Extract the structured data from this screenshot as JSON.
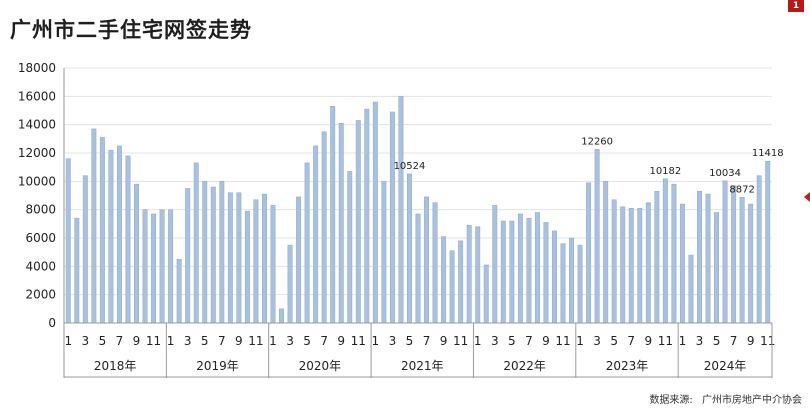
{
  "title": "广州市二手住宅网签走势",
  "badge": "1",
  "source": {
    "label": "数据来源:",
    "value": "广州市房地产中介协会"
  },
  "colors": {
    "bar": "#a9c1dc",
    "bar_edge": "#8eaacb",
    "grid": "#e3e3e3",
    "axis": "#9a9a9a"
  },
  "chart_data": {
    "type": "bar",
    "title": "广州市二手住宅网签走势",
    "xlabel": "",
    "ylabel": "",
    "ylim": [
      0,
      18000
    ],
    "yticks": [
      0,
      2000,
      4000,
      6000,
      8000,
      10000,
      12000,
      14000,
      16000,
      18000
    ],
    "grid": true,
    "years": [
      "2018年",
      "2019年",
      "2020年",
      "2021年",
      "2022年",
      "2023年",
      "2024年"
    ],
    "month_ticks": [
      "1",
      "3",
      "5",
      "7",
      "9",
      "11"
    ],
    "series": [
      {
        "values": [
          11600,
          7400,
          10400,
          13700,
          13100,
          12200,
          12500,
          11800,
          9800,
          8000,
          7700,
          8000,
          8000,
          4500,
          9500,
          11300,
          10000,
          9600,
          10000,
          9200,
          9200,
          7900,
          8700,
          9100,
          8300,
          1000,
          5500,
          8900,
          11300,
          12500,
          13500,
          15300,
          14100,
          10700,
          14300,
          15100,
          15600,
          10000,
          14900,
          16000,
          10524,
          7700,
          8900,
          8500,
          6100,
          5100,
          5800,
          6900,
          6800,
          4100,
          8300,
          7200,
          7200,
          7700,
          7400,
          7800,
          7100,
          6500,
          5600,
          6000,
          5500,
          9900,
          12260,
          10000,
          8700,
          8200,
          8100,
          8100,
          8500,
          9300,
          10182,
          9800,
          8400,
          4800,
          9300,
          9100,
          7800,
          10034,
          9700,
          8872,
          8400,
          10400,
          11418
        ]
      }
    ],
    "annotations": [
      {
        "index": 40,
        "label": "10524"
      },
      {
        "index": 62,
        "label": "12260"
      },
      {
        "index": 70,
        "label": "10182"
      },
      {
        "index": 77,
        "label": "10034"
      },
      {
        "index": 79,
        "label": "8872"
      },
      {
        "index": 82,
        "label": "11418"
      }
    ]
  }
}
